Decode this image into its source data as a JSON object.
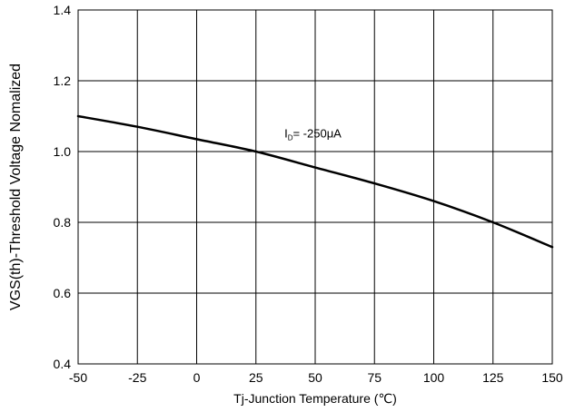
{
  "chart_data": {
    "type": "line",
    "xlabel": "Tj-Junction Temperature (℃)",
    "ylabel": "VGS(th)-Threshold Voltage Nomalized",
    "xlim": [
      -50,
      150
    ],
    "ylim": [
      0.4,
      1.4
    ],
    "x_ticks": [
      -50,
      -25,
      0,
      25,
      50,
      75,
      100,
      125,
      150
    ],
    "y_ticks": [
      0.4,
      0.6,
      0.8,
      1.0,
      1.2,
      1.4
    ],
    "x_tick_labels": [
      "-50",
      "-25",
      "0",
      "25",
      "50",
      "75",
      "100",
      "125",
      "150"
    ],
    "y_tick_labels": [
      "0.4",
      "0.6",
      "0.8",
      "1.0",
      "1.2",
      "1.4"
    ],
    "grid": true,
    "series": [
      {
        "x": [
          -50,
          -25,
          0,
          25,
          50,
          75,
          100,
          125,
          150
        ],
        "y": [
          1.1,
          1.07,
          1.035,
          1.0,
          0.955,
          0.91,
          0.86,
          0.8,
          0.73
        ],
        "color": "#000000"
      }
    ],
    "annotation": {
      "main": "I",
      "sub": "D",
      "rest": "= -250μA",
      "x": 37,
      "y": 1.04
    }
  }
}
